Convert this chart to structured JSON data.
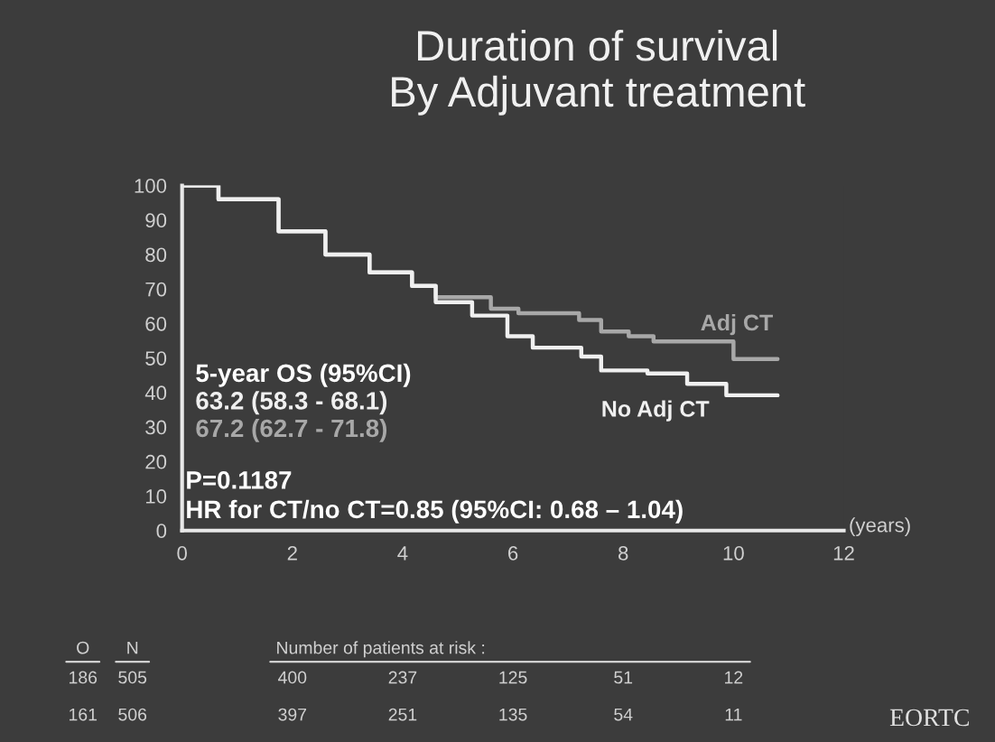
{
  "chart_data": {
    "type": "step",
    "title": "Duration of survival\nBy Adjuvant treatment",
    "xlabel": "(years)",
    "series": [
      {
        "name": "Adj CT",
        "color": "#a8a8a8",
        "x": [
          0,
          0.66,
          1.75,
          2.6,
          3.4,
          4.17,
          4.6,
          5.6,
          6.1,
          7.2,
          7.6,
          8.1,
          8.55,
          10.0,
          10.8
        ],
        "values": [
          100,
          96,
          86.7,
          80,
          74.8,
          70.9,
          67.6,
          64.3,
          63,
          61,
          57.7,
          56.3,
          54.8,
          49.7,
          49.7
        ]
      },
      {
        "name": "No Adj CT",
        "color": "#f0f0f0",
        "x": [
          0,
          0.66,
          1.75,
          2.6,
          3.4,
          4.17,
          4.6,
          5.26,
          5.9,
          6.36,
          7.24,
          7.6,
          8.44,
          9.16,
          9.87,
          10.8
        ],
        "values": [
          100,
          96,
          86.7,
          80,
          74.8,
          70.9,
          66.2,
          62.3,
          56.3,
          53,
          50.4,
          46.4,
          45.5,
          42.5,
          39.2,
          39.2
        ]
      }
    ],
    "xlim": [
      0,
      12
    ],
    "xticks": [
      0,
      2,
      4,
      6,
      8,
      10,
      12
    ],
    "ylim": [
      0,
      100
    ],
    "yticks": [
      0,
      10,
      20,
      30,
      40,
      50,
      60,
      70,
      80,
      90,
      100
    ],
    "grid": false,
    "legend": false,
    "annotations": [
      "5-year OS (95%CI)",
      "63.2 (58.3 - 68.1)",
      "67.2 (62.7 - 71.8)",
      "P=0.1187",
      "HR for CT/no CT=0.85 (95%CI: 0.68 – 1.04)",
      "O",
      "N",
      "Number of patients at risk :",
      "186",
      "505",
      "400",
      "237",
      "125",
      "51",
      "12",
      "161",
      "506",
      "397",
      "251",
      "135",
      "54",
      "11",
      "EORTC"
    ]
  }
}
